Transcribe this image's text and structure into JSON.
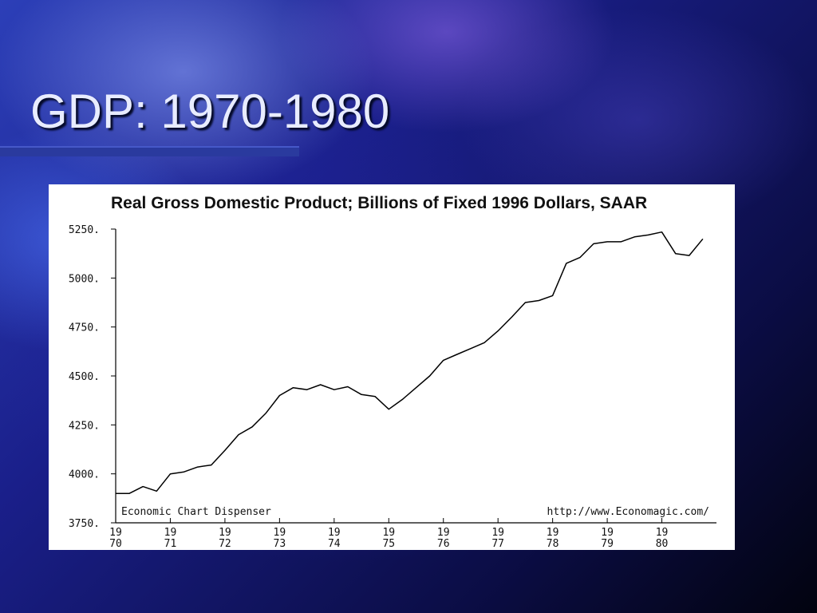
{
  "slide": {
    "title": "GDP: 1970-1980"
  },
  "chart_data": {
    "type": "line",
    "title": "Real Gross Domestic Product; Billions of Fixed 1996 Dollars, SAAR",
    "xlabel": "",
    "ylabel": "",
    "ylim": [
      3750,
      5250
    ],
    "xlim": [
      1970.0,
      1981.0
    ],
    "yticks": [
      {
        "value": 5250,
        "label": "5250."
      },
      {
        "value": 5000,
        "label": "5000."
      },
      {
        "value": 4750,
        "label": "4750."
      },
      {
        "value": 4500,
        "label": "4500."
      },
      {
        "value": 4250,
        "label": "4250."
      },
      {
        "value": 4000,
        "label": "4000."
      },
      {
        "value": 3750,
        "label": "3750."
      }
    ],
    "xticks": [
      {
        "value": 1970,
        "top": "19",
        "bottom": "70"
      },
      {
        "value": 1971,
        "top": "19",
        "bottom": "71"
      },
      {
        "value": 1972,
        "top": "19",
        "bottom": "72"
      },
      {
        "value": 1973,
        "top": "19",
        "bottom": "73"
      },
      {
        "value": 1974,
        "top": "19",
        "bottom": "74"
      },
      {
        "value": 1975,
        "top": "19",
        "bottom": "75"
      },
      {
        "value": 1976,
        "top": "19",
        "bottom": "76"
      },
      {
        "value": 1977,
        "top": "19",
        "bottom": "77"
      },
      {
        "value": 1978,
        "top": "19",
        "bottom": "78"
      },
      {
        "value": 1979,
        "top": "19",
        "bottom": "79"
      },
      {
        "value": 1980,
        "top": "19",
        "bottom": "80"
      }
    ],
    "series": [
      {
        "color": "#000000",
        "points": [
          [
            1970.0,
            3900
          ],
          [
            1970.25,
            3900
          ],
          [
            1970.5,
            3935
          ],
          [
            1970.75,
            3912
          ],
          [
            1971.0,
            4000
          ],
          [
            1971.25,
            4010
          ],
          [
            1971.5,
            4035
          ],
          [
            1971.75,
            4045
          ],
          [
            1972.0,
            4120
          ],
          [
            1972.25,
            4200
          ],
          [
            1972.5,
            4240
          ],
          [
            1972.75,
            4310
          ],
          [
            1973.0,
            4400
          ],
          [
            1973.25,
            4440
          ],
          [
            1973.5,
            4430
          ],
          [
            1973.75,
            4455
          ],
          [
            1974.0,
            4430
          ],
          [
            1974.25,
            4445
          ],
          [
            1974.5,
            4405
          ],
          [
            1974.75,
            4395
          ],
          [
            1975.0,
            4330
          ],
          [
            1975.25,
            4380
          ],
          [
            1975.5,
            4440
          ],
          [
            1975.75,
            4500
          ],
          [
            1976.0,
            4580
          ],
          [
            1976.25,
            4610
          ],
          [
            1976.5,
            4640
          ],
          [
            1976.75,
            4670
          ],
          [
            1977.0,
            4730
          ],
          [
            1977.25,
            4800
          ],
          [
            1977.5,
            4875
          ],
          [
            1977.75,
            4885
          ],
          [
            1978.0,
            4910
          ],
          [
            1978.25,
            5075
          ],
          [
            1978.5,
            5105
          ],
          [
            1978.75,
            5175
          ],
          [
            1979.0,
            5185
          ],
          [
            1979.25,
            5185
          ],
          [
            1979.5,
            5210
          ],
          [
            1979.75,
            5220
          ],
          [
            1980.0,
            5235
          ],
          [
            1980.25,
            5125
          ],
          [
            1980.5,
            5115
          ],
          [
            1980.75,
            5200
          ]
        ]
      }
    ],
    "annotations": {
      "source_left": "Economic Chart Dispenser",
      "source_right": "http://www.Economagic.com/"
    },
    "grid": false,
    "legend": "none"
  }
}
